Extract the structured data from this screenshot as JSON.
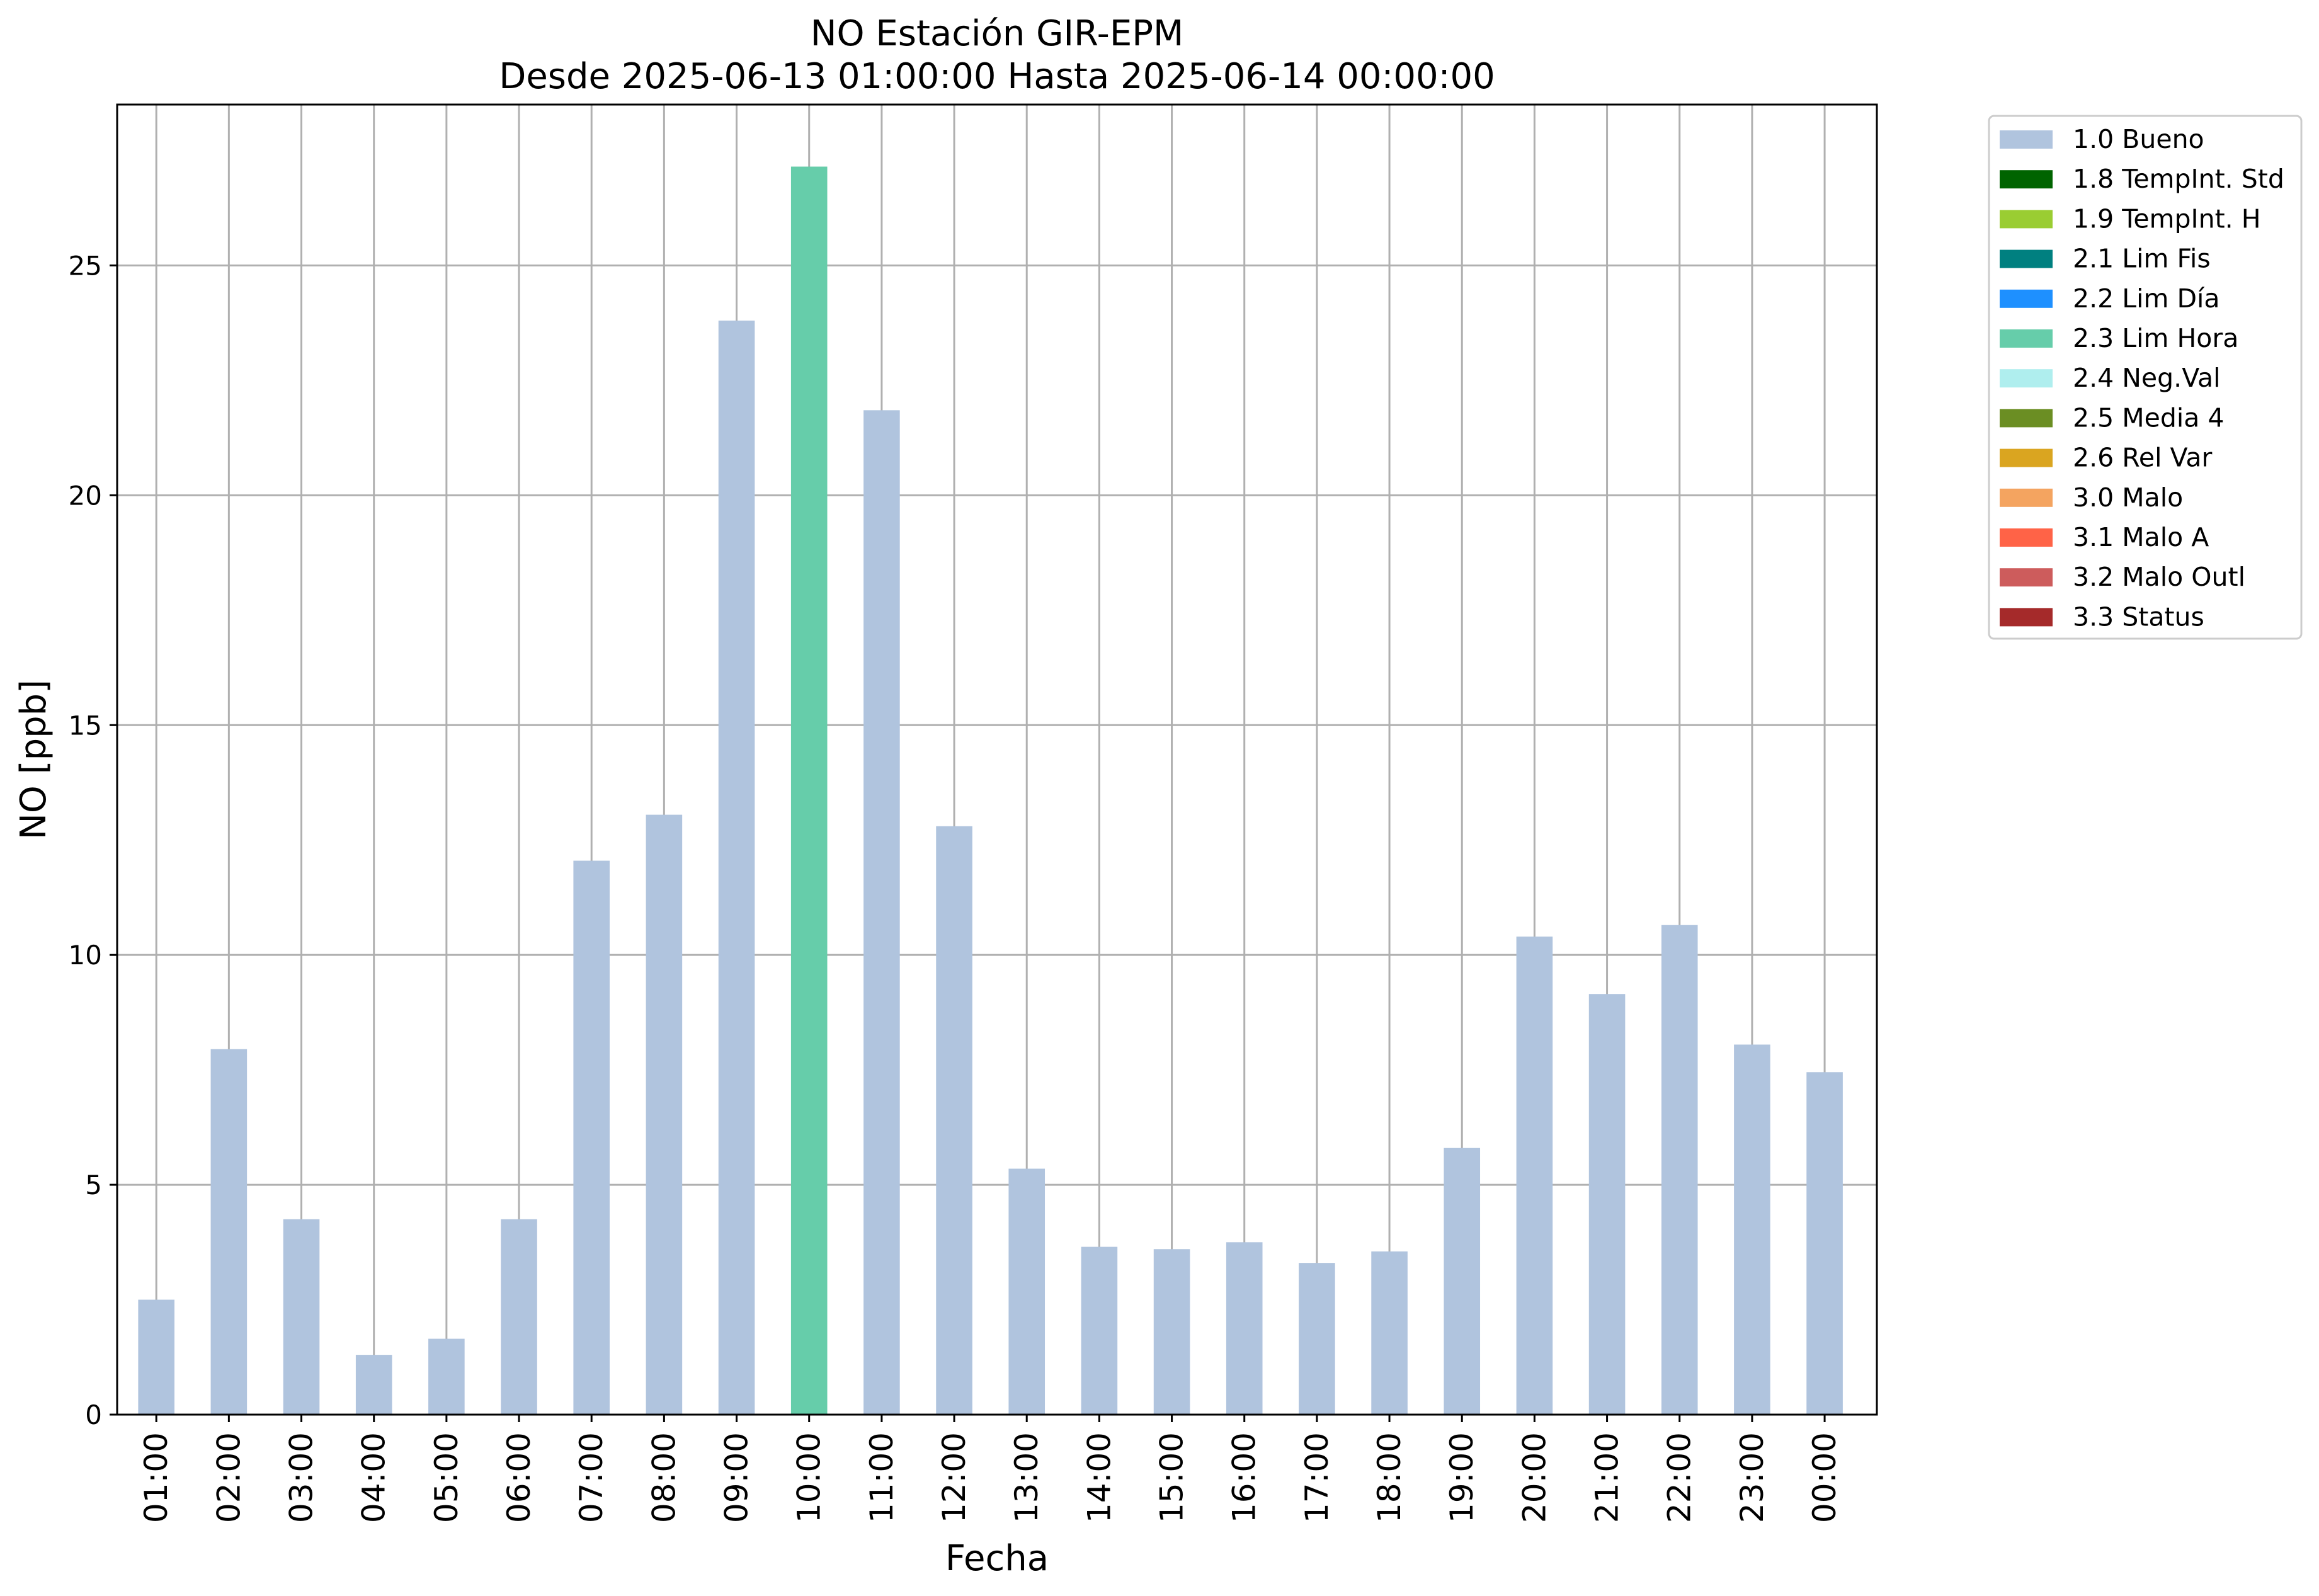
{
  "chart_data": {
    "type": "bar",
    "title_line1": "NO Estación GIR-EPM",
    "title_line2": "Desde 2025-06-13 01:00:00 Hasta 2025-06-14 00:00:00",
    "xlabel": "Fecha",
    "ylabel": "NO [ppb]",
    "ylim": [
      0,
      28.5
    ],
    "yticks": [
      0,
      5,
      10,
      15,
      20,
      25
    ],
    "grid": true,
    "legend_position": "outside-top-right",
    "categories": [
      "01:00",
      "02:00",
      "03:00",
      "04:00",
      "05:00",
      "06:00",
      "07:00",
      "08:00",
      "09:00",
      "10:00",
      "11:00",
      "12:00",
      "13:00",
      "14:00",
      "15:00",
      "16:00",
      "17:00",
      "18:00",
      "19:00",
      "20:00",
      "21:00",
      "22:00",
      "23:00",
      "00:00"
    ],
    "values": [
      2.5,
      7.95,
      4.25,
      1.3,
      1.65,
      4.25,
      12.05,
      13.05,
      23.8,
      27.15,
      21.85,
      12.8,
      5.35,
      3.65,
      3.6,
      3.75,
      3.3,
      3.55,
      5.8,
      10.4,
      9.15,
      10.65,
      8.05,
      7.45
    ],
    "flags": [
      "1.0 Bueno",
      "1.0 Bueno",
      "1.0 Bueno",
      "1.0 Bueno",
      "1.0 Bueno",
      "1.0 Bueno",
      "1.0 Bueno",
      "1.0 Bueno",
      "1.0 Bueno",
      "2.3 Lim Hora",
      "1.0 Bueno",
      "1.0 Bueno",
      "1.0 Bueno",
      "1.0 Bueno",
      "1.0 Bueno",
      "1.0 Bueno",
      "1.0 Bueno",
      "1.0 Bueno",
      "1.0 Bueno",
      "1.0 Bueno",
      "1.0 Bueno",
      "1.0 Bueno",
      "1.0 Bueno",
      "1.0 Bueno"
    ],
    "legend": [
      {
        "label": "1.0 Bueno",
        "color": "#b0c4de"
      },
      {
        "label": "1.8 TempInt. Std",
        "color": "#006400"
      },
      {
        "label": "1.9 TempInt. H",
        "color": "#9acd32"
      },
      {
        "label": "2.1 Lim Fis",
        "color": "#008080"
      },
      {
        "label": "2.2 Lim Día",
        "color": "#1e90ff"
      },
      {
        "label": "2.3 Lim Hora",
        "color": "#66cdaa"
      },
      {
        "label": "2.4 Neg.Val",
        "color": "#afeeee"
      },
      {
        "label": "2.5 Media 4",
        "color": "#6b8e23"
      },
      {
        "label": "2.6 Rel Var",
        "color": "#daa520"
      },
      {
        "label": "3.0 Malo",
        "color": "#f4a460"
      },
      {
        "label": "3.1 Malo A",
        "color": "#ff6347"
      },
      {
        "label": "3.2 Malo Outl",
        "color": "#cd5c5c"
      },
      {
        "label": "3.3 Status",
        "color": "#a52a2a"
      }
    ]
  }
}
